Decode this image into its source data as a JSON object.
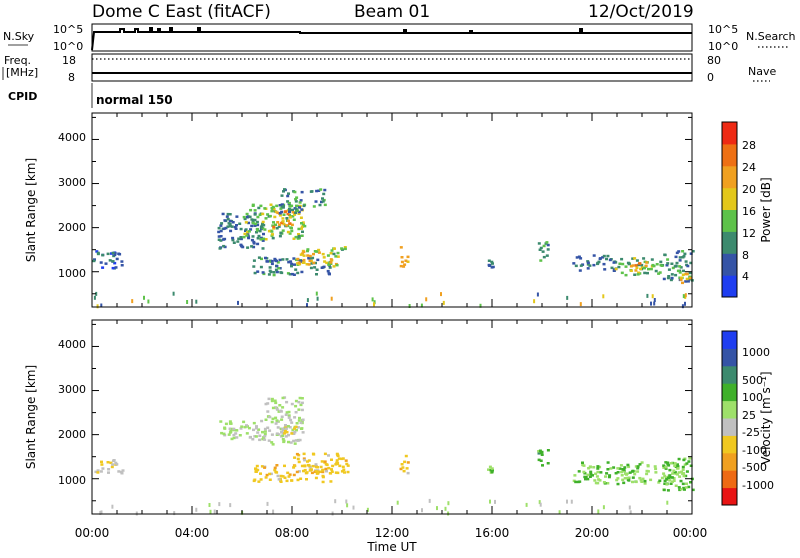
{
  "header": {
    "title": "Dome C East (fitACF)",
    "beam": "Beam 01",
    "date": "12/Oct/2019"
  },
  "small_panels": {
    "nsky_label": "N.Sky",
    "nsky_top": "10^5",
    "nsky_bottom": "10^0",
    "nsearch_label": "N.Search",
    "nsearch_top": "10^5",
    "nsearch_bottom": "10^0",
    "freq_label_1": "Freq.",
    "freq_label_2": "[MHz]",
    "freq_top": "18",
    "freq_bottom": "8",
    "nave_label": "Nave",
    "nave_top": "80",
    "nave_bottom": "0",
    "cpid_label": "CPID",
    "cpid_value": "normal 150"
  },
  "axes": {
    "y_label": "Slant Range [km]",
    "y_ticks": [
      "1000",
      "2000",
      "3000",
      "4000"
    ],
    "x_label": "Time UT",
    "x_ticks": [
      "00:00",
      "04:00",
      "08:00",
      "12:00",
      "16:00",
      "20:00",
      "00:00"
    ]
  },
  "colors": {
    "power_scale": [
      "#1f3ef0",
      "#3554a6",
      "#3c8a6e",
      "#5ec24a",
      "#e3c71b",
      "#f0a020",
      "#ee7014",
      "#ee2a14"
    ],
    "velocity_scale": [
      "#e81414",
      "#ee6a14",
      "#f0a020",
      "#f0c820",
      "#c0c0c0",
      "#9ee06a",
      "#3fb02a",
      "#3c8a6e",
      "#3554a6",
      "#1f3ef0"
    ]
  },
  "colorbars": {
    "power": {
      "label": "Power [dB]",
      "ticks": [
        "4",
        "8",
        "12",
        "16",
        "20",
        "24",
        "28"
      ]
    },
    "velocity": {
      "label": "Velocity [m s⁻¹]",
      "ticks": [
        "-1000",
        "-500",
        "-100",
        "-25",
        "25",
        "100",
        "500",
        "1000"
      ]
    }
  },
  "chart_data": [
    {
      "type": "heatmap",
      "panel": "power",
      "x_unit": "hours UT",
      "y_unit": "km",
      "xlim": [
        0,
        24
      ],
      "ylim": [
        200,
        4600
      ],
      "colorbar_range": [
        0,
        32
      ],
      "clusters": [
        {
          "x": [
            5.0,
            6.8
          ],
          "y": [
            1550,
            2350
          ],
          "value": 8
        },
        {
          "x": [
            6.0,
            8.5
          ],
          "y": [
            1750,
            2550
          ],
          "value": 14
        },
        {
          "x": [
            7.2,
            8.0
          ],
          "y": [
            2000,
            2400
          ],
          "value": 22
        },
        {
          "x": [
            7.4,
            8.4
          ],
          "y": [
            2350,
            2900
          ],
          "value": 10
        },
        {
          "x": [
            8.7,
            9.3
          ],
          "y": [
            2500,
            2900
          ],
          "value": 9
        },
        {
          "x": [
            6.4,
            9.5
          ],
          "y": [
            950,
            1350
          ],
          "value": 9
        },
        {
          "x": [
            8.0,
            9.8
          ],
          "y": [
            1150,
            1550
          ],
          "value": 18
        },
        {
          "x": [
            9.6,
            10.2
          ],
          "y": [
            1350,
            1600
          ],
          "value": 14
        },
        {
          "x": [
            0.0,
            1.2
          ],
          "y": [
            1100,
            1500
          ],
          "value": 6
        },
        {
          "x": [
            12.3,
            12.6
          ],
          "y": [
            1100,
            1600
          ],
          "value": 20
        },
        {
          "x": [
            15.8,
            16.0
          ],
          "y": [
            1100,
            1300
          ],
          "value": 9
        },
        {
          "x": [
            17.8,
            18.2
          ],
          "y": [
            1200,
            1700
          ],
          "value": 11
        },
        {
          "x": [
            19.2,
            20.9
          ],
          "y": [
            1050,
            1400
          ],
          "value": 8
        },
        {
          "x": [
            20.9,
            22.8
          ],
          "y": [
            950,
            1350
          ],
          "value": 14
        },
        {
          "x": [
            21.5,
            22.2
          ],
          "y": [
            1050,
            1250
          ],
          "value": 22
        },
        {
          "x": [
            22.8,
            24.0
          ],
          "y": [
            800,
            1500
          ],
          "value": 10
        },
        {
          "x": [
            23.5,
            24.0
          ],
          "y": [
            750,
            1000
          ],
          "value": 20
        }
      ]
    },
    {
      "type": "heatmap",
      "panel": "velocity",
      "x_unit": "hours UT",
      "y_unit": "km",
      "xlim": [
        0,
        24
      ],
      "ylim": [
        200,
        4600
      ],
      "colorbar_range": [
        -1000,
        1000
      ],
      "clusters": [
        {
          "x": [
            5.0,
            6.8
          ],
          "y": [
            1900,
            2350
          ],
          "value": 0
        },
        {
          "x": [
            6.8,
            8.4
          ],
          "y": [
            1800,
            2900
          ],
          "value": 0
        },
        {
          "x": [
            7.5,
            8.2
          ],
          "y": [
            2000,
            2250
          ],
          "value": -300
        },
        {
          "x": [
            6.4,
            9.5
          ],
          "y": [
            950,
            1350
          ],
          "value": -300
        },
        {
          "x": [
            8.0,
            10.2
          ],
          "y": [
            1150,
            1600
          ],
          "value": -300
        },
        {
          "x": [
            0.0,
            1.2
          ],
          "y": [
            1150,
            1450
          ],
          "value": -150
        },
        {
          "x": [
            12.3,
            12.6
          ],
          "y": [
            1100,
            1600
          ],
          "value": -300
        },
        {
          "x": [
            15.8,
            16.0
          ],
          "y": [
            1150,
            1300
          ],
          "value": 200
        },
        {
          "x": [
            17.8,
            18.2
          ],
          "y": [
            1250,
            1700
          ],
          "value": 300
        },
        {
          "x": [
            19.2,
            23.5
          ],
          "y": [
            900,
            1400
          ],
          "value": 200
        },
        {
          "x": [
            22.8,
            24.0
          ],
          "y": [
            750,
            1500
          ],
          "value": 200
        }
      ]
    }
  ]
}
